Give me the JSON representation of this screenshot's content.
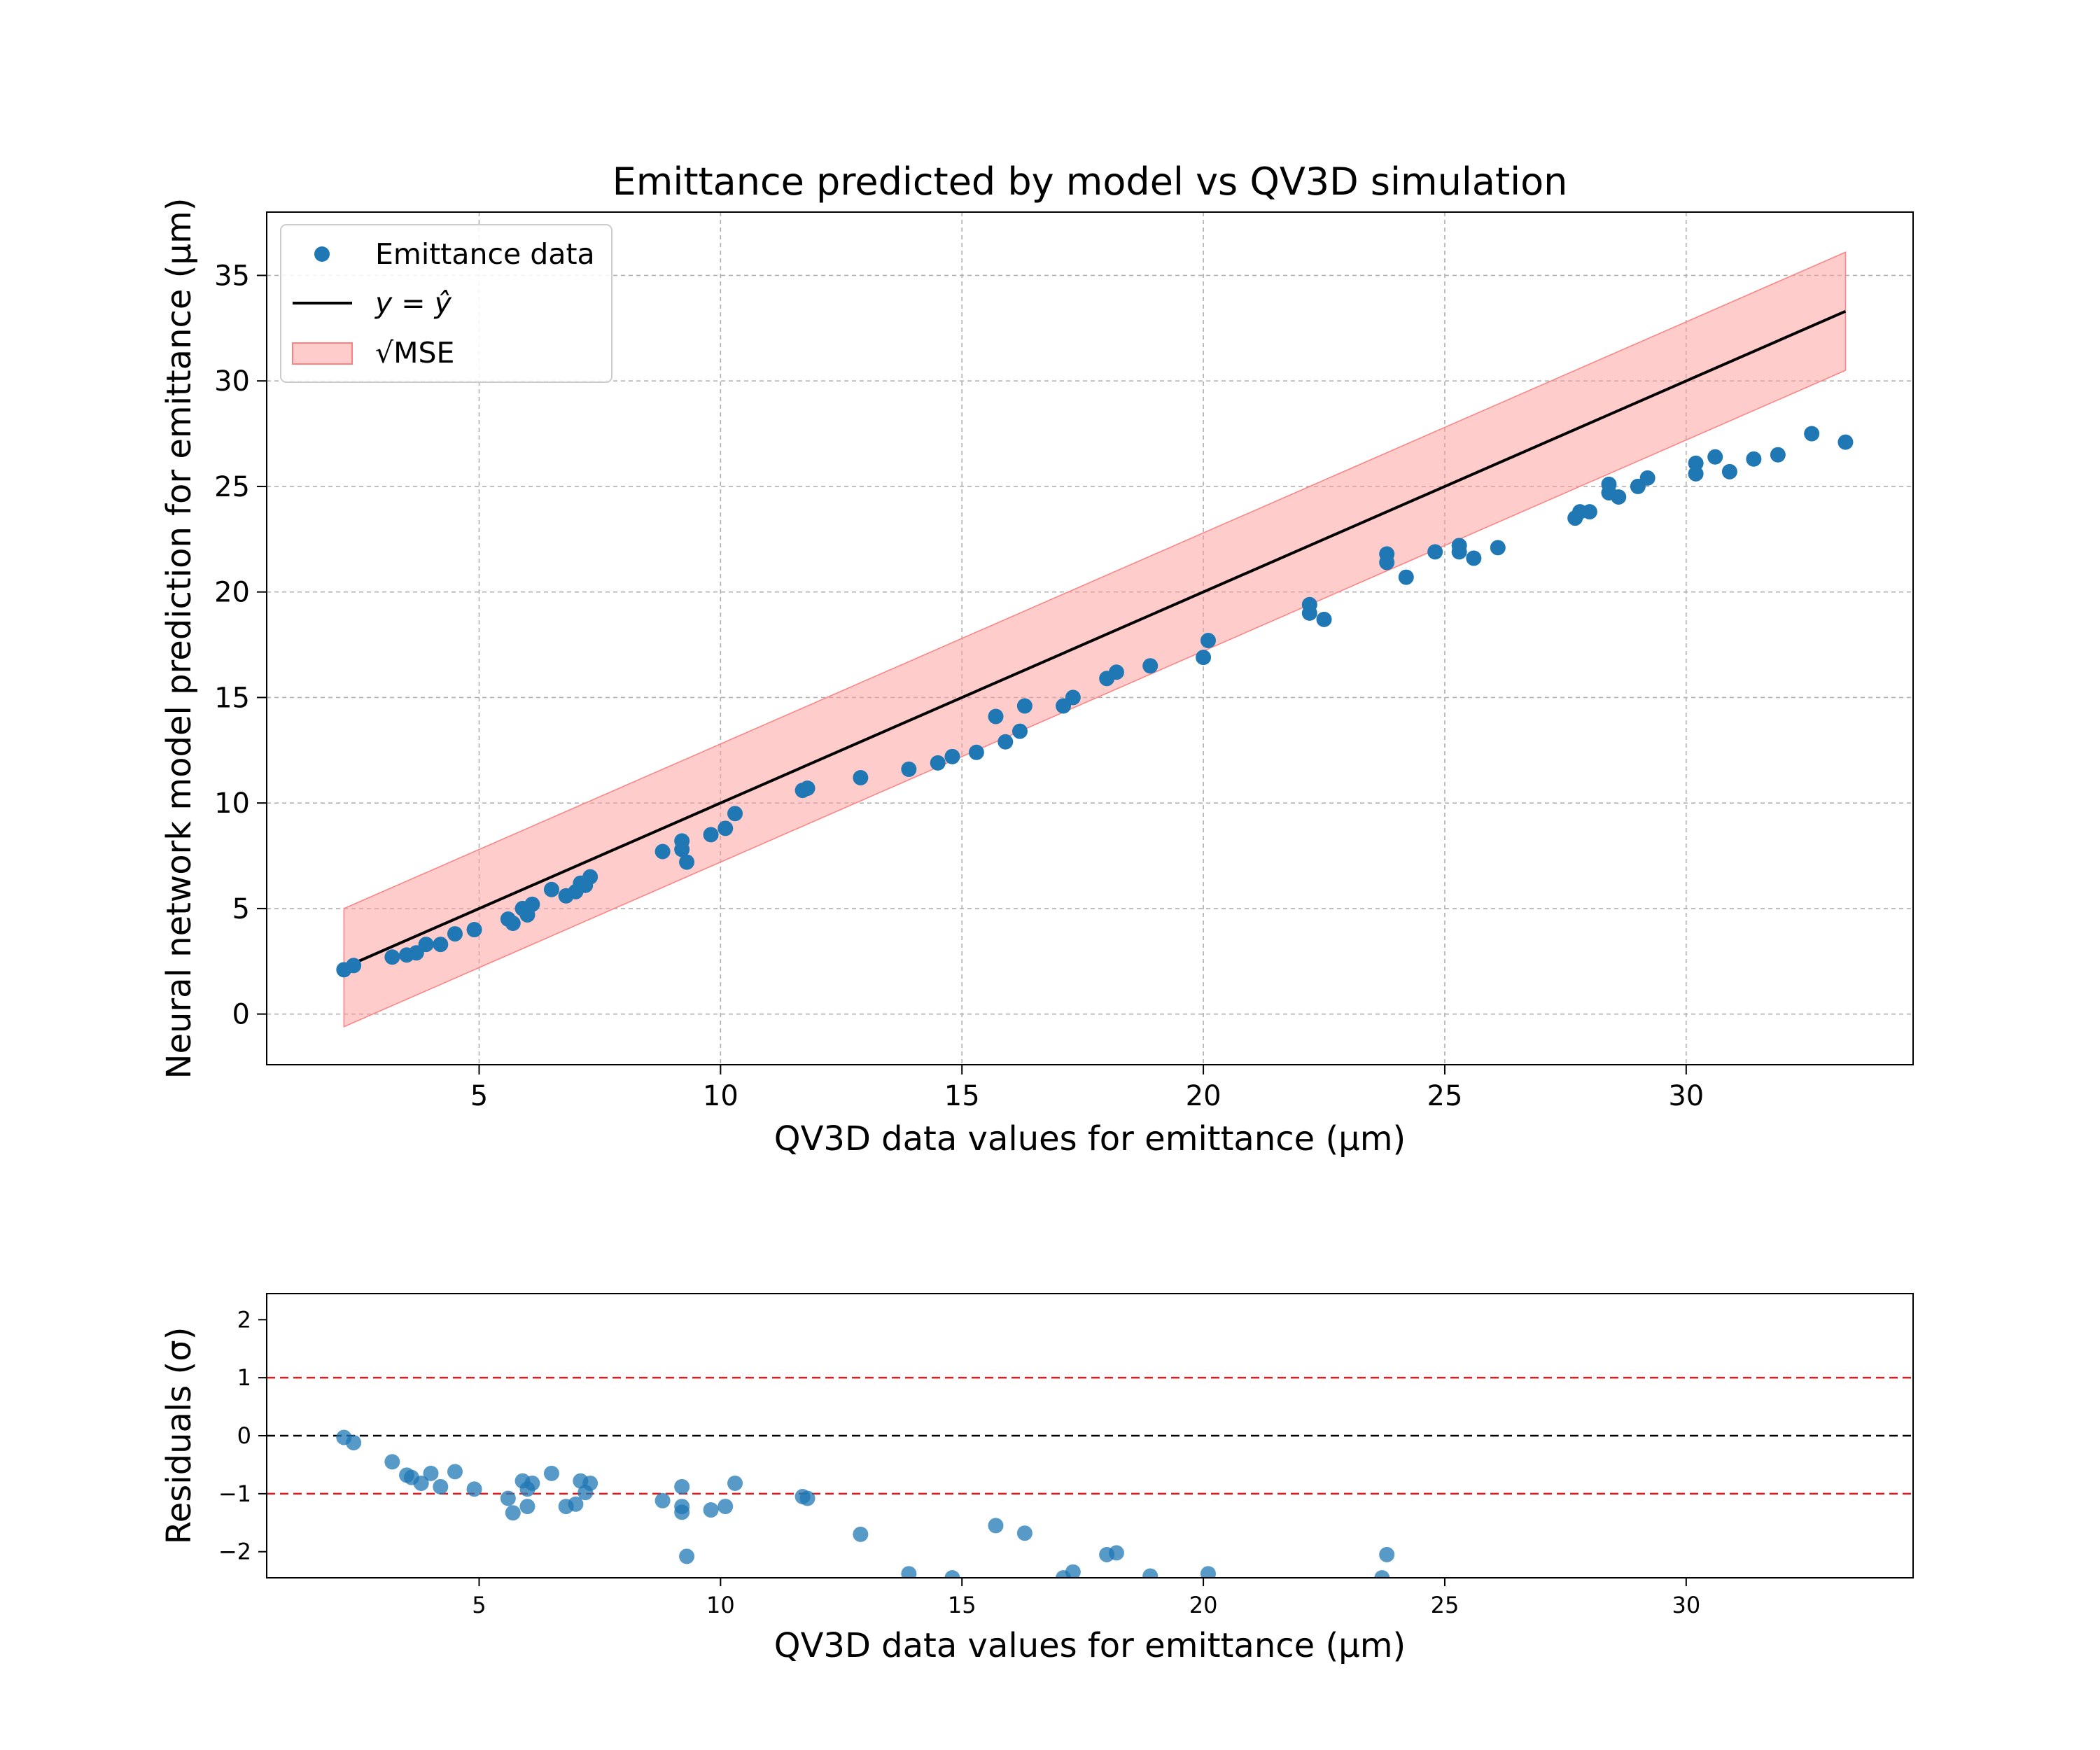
{
  "colors": {
    "points": "#1f77b4",
    "identity_line": "#000000",
    "band_fill": "#ff9999",
    "band_edge": "#ff8080",
    "sigma_lines": "#e31a1c",
    "zero_line": "#000000"
  },
  "chart_data": [
    {
      "type": "scatter",
      "title": "Emittance predicted by model vs QV3D simulation",
      "xlabel": "QV3D data values for emittance (μm)",
      "ylabel": "Neural network model prediction for emittance (μm)",
      "xlim": [
        0.6,
        34.7
      ],
      "ylim": [
        -2.4,
        38.0
      ],
      "xticks": [
        5,
        10,
        15,
        20,
        25,
        30
      ],
      "yticks": [
        0,
        5,
        10,
        15,
        20,
        25,
        30,
        35
      ],
      "grid": true,
      "legend": {
        "placement": "top-left",
        "entries": [
          {
            "kind": "marker",
            "label": "Emittance data"
          },
          {
            "kind": "line",
            "label": "y = ŷ"
          },
          {
            "kind": "patch",
            "label": "√MSE"
          }
        ]
      },
      "identity_line": {
        "x": [
          2.2,
          33.3
        ]
      },
      "band": {
        "x": [
          2.2,
          33.3
        ],
        "half_width": 2.8
      },
      "series": [
        {
          "name": "Emittance data",
          "points": [
            [
              2.2,
              2.1
            ],
            [
              2.4,
              2.3
            ],
            [
              3.2,
              2.7
            ],
            [
              3.5,
              2.8
            ],
            [
              3.7,
              2.9
            ],
            [
              3.9,
              3.3
            ],
            [
              4.2,
              3.3
            ],
            [
              4.5,
              3.8
            ],
            [
              4.9,
              4.0
            ],
            [
              5.6,
              4.5
            ],
            [
              5.7,
              4.3
            ],
            [
              5.9,
              5.0
            ],
            [
              6.0,
              4.7
            ],
            [
              6.1,
              5.2
            ],
            [
              6.5,
              5.9
            ],
            [
              6.8,
              5.6
            ],
            [
              7.0,
              5.8
            ],
            [
              7.1,
              6.2
            ],
            [
              7.2,
              6.1
            ],
            [
              7.3,
              6.5
            ],
            [
              8.8,
              7.7
            ],
            [
              9.2,
              8.2
            ],
            [
              9.2,
              7.8
            ],
            [
              9.3,
              7.2
            ],
            [
              9.8,
              8.5
            ],
            [
              10.1,
              8.8
            ],
            [
              10.3,
              9.5
            ],
            [
              11.7,
              10.6
            ],
            [
              11.8,
              10.7
            ],
            [
              12.9,
              11.2
            ],
            [
              13.9,
              11.6
            ],
            [
              14.5,
              11.9
            ],
            [
              14.8,
              12.2
            ],
            [
              15.3,
              12.4
            ],
            [
              15.7,
              14.1
            ],
            [
              15.9,
              12.9
            ],
            [
              16.2,
              13.4
            ],
            [
              16.3,
              14.6
            ],
            [
              17.1,
              14.6
            ],
            [
              17.3,
              15.0
            ],
            [
              18.0,
              15.9
            ],
            [
              18.2,
              16.2
            ],
            [
              18.9,
              16.5
            ],
            [
              20.0,
              16.9
            ],
            [
              20.1,
              17.7
            ],
            [
              22.2,
              19.4
            ],
            [
              22.2,
              19.0
            ],
            [
              22.5,
              18.7
            ],
            [
              23.8,
              21.4
            ],
            [
              23.8,
              21.8
            ],
            [
              24.2,
              20.7
            ],
            [
              24.8,
              21.9
            ],
            [
              25.3,
              22.2
            ],
            [
              25.3,
              21.9
            ],
            [
              25.6,
              21.6
            ],
            [
              26.1,
              22.1
            ],
            [
              27.7,
              23.5
            ],
            [
              27.8,
              23.8
            ],
            [
              28.0,
              23.8
            ],
            [
              28.4,
              24.7
            ],
            [
              28.4,
              25.1
            ],
            [
              28.6,
              24.5
            ],
            [
              29.0,
              25.0
            ],
            [
              29.2,
              25.4
            ],
            [
              30.2,
              25.6
            ],
            [
              30.2,
              26.1
            ],
            [
              30.6,
              26.4
            ],
            [
              30.9,
              25.7
            ],
            [
              31.4,
              26.3
            ],
            [
              31.9,
              26.5
            ],
            [
              32.6,
              27.5
            ],
            [
              33.3,
              27.1
            ]
          ]
        }
      ]
    },
    {
      "type": "scatter",
      "xlabel": "QV3D data values for emittance (μm)",
      "ylabel": "Residuals (σ)",
      "xlim": [
        0.6,
        34.7
      ],
      "ylim": [
        -2.45,
        2.45
      ],
      "xticks": [
        5,
        10,
        15,
        20,
        25,
        30
      ],
      "yticks": [
        -2,
        -1,
        0,
        1,
        2
      ],
      "grid": false,
      "reference_lines": [
        {
          "y": 1,
          "style": "dashed",
          "color": "red"
        },
        {
          "y": 0,
          "style": "dashed",
          "color": "black"
        },
        {
          "y": -1,
          "style": "dashed",
          "color": "red"
        }
      ],
      "series": [
        {
          "name": "Residuals",
          "points": [
            [
              2.2,
              -0.03
            ],
            [
              2.4,
              -0.12
            ],
            [
              3.2,
              -0.45
            ],
            [
              3.5,
              -0.68
            ],
            [
              3.6,
              -0.72
            ],
            [
              3.8,
              -0.82
            ],
            [
              4.0,
              -0.65
            ],
            [
              4.2,
              -0.88
            ],
            [
              4.5,
              -0.62
            ],
            [
              4.9,
              -0.92
            ],
            [
              5.6,
              -1.08
            ],
            [
              5.7,
              -1.33
            ],
            [
              5.9,
              -0.78
            ],
            [
              6.0,
              -0.92
            ],
            [
              6.0,
              -1.22
            ],
            [
              6.1,
              -0.82
            ],
            [
              6.5,
              -0.65
            ],
            [
              6.8,
              -1.22
            ],
            [
              7.0,
              -1.18
            ],
            [
              7.1,
              -0.78
            ],
            [
              7.2,
              -0.98
            ],
            [
              7.3,
              -0.82
            ],
            [
              8.8,
              -1.12
            ],
            [
              9.2,
              -0.88
            ],
            [
              9.2,
              -1.22
            ],
            [
              9.2,
              -1.32
            ],
            [
              9.3,
              -2.08
            ],
            [
              9.8,
              -1.28
            ],
            [
              10.1,
              -1.22
            ],
            [
              10.3,
              -0.82
            ],
            [
              11.7,
              -1.05
            ],
            [
              11.8,
              -1.08
            ],
            [
              12.9,
              -1.7
            ],
            [
              13.9,
              -2.38
            ],
            [
              14.8,
              -2.45
            ],
            [
              15.7,
              -1.55
            ],
            [
              16.3,
              -1.68
            ],
            [
              17.1,
              -2.45
            ],
            [
              17.3,
              -2.35
            ],
            [
              18.0,
              -2.05
            ],
            [
              18.2,
              -2.02
            ],
            [
              18.9,
              -2.42
            ],
            [
              20.1,
              -2.38
            ],
            [
              23.7,
              -2.45
            ],
            [
              23.8,
              -2.05
            ]
          ]
        }
      ]
    }
  ]
}
